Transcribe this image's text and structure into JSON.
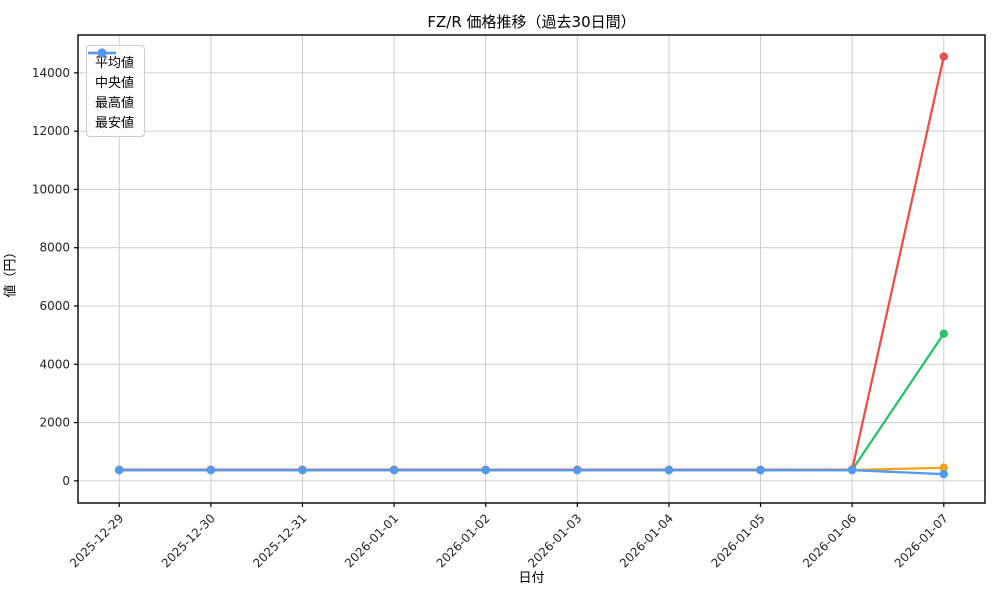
{
  "chart_data": {
    "type": "line",
    "title": "FZ/R 価格推移（過去30日間）",
    "xlabel": "日付",
    "ylabel": "値（円）",
    "x": [
      "2025-12-29",
      "2025-12-30",
      "2025-12-31",
      "2026-01-01",
      "2026-01-02",
      "2026-01-03",
      "2026-01-04",
      "2026-01-05",
      "2026-01-06",
      "2026-01-07"
    ],
    "series": [
      {
        "name": "平均値",
        "color": "#2cc26d",
        "values": [
          372,
          372,
          372,
          372,
          372,
          372,
          372,
          372,
          375,
          5050
        ]
      },
      {
        "name": "中央値",
        "color": "#f9a21a",
        "values": [
          370,
          370,
          370,
          370,
          370,
          370,
          370,
          370,
          372,
          450
        ]
      },
      {
        "name": "最高値",
        "color": "#f04d4d",
        "values": [
          380,
          380,
          380,
          380,
          380,
          380,
          380,
          380,
          385,
          14560
        ]
      },
      {
        "name": "最安値",
        "color": "#4f9bf2",
        "values": [
          365,
          365,
          365,
          365,
          365,
          365,
          365,
          365,
          368,
          230
        ]
      }
    ],
    "yticks": [
      0,
      2000,
      4000,
      6000,
      8000,
      10000,
      12000,
      14000
    ],
    "ylim": [
      -760,
      15300
    ],
    "grid": true,
    "legend_position": "upper left"
  },
  "style": {
    "grid_color": "#cccccc",
    "axis_color": "#000000",
    "tick_text_color": "#262626",
    "background": "#ffffff"
  }
}
